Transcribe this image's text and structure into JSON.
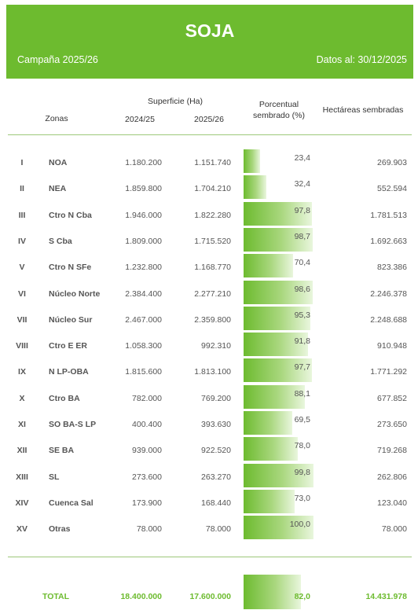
{
  "header": {
    "title": "SOJA",
    "campaign": "Campaña 2025/26",
    "date": "Datos al: 30/12/2025",
    "color": "#6dbb2f"
  },
  "columns": {
    "zonas": "Zonas",
    "superficie": "Superficie (Ha)",
    "year1": "2024/25",
    "year2": "2025/26",
    "porcentual_1": "Porcentual",
    "porcentual_2": "sembrado (%)",
    "hectareas": "Hectáreas sembradas"
  },
  "rows": [
    {
      "roman": "I",
      "zona": "NOA",
      "sup1": "1.180.200",
      "sup2": "1.151.740",
      "pct_label": "23,4",
      "pct": 23.4,
      "hect": "269.903"
    },
    {
      "roman": "II",
      "zona": "NEA",
      "sup1": "1.859.800",
      "sup2": "1.704.210",
      "pct_label": "32,4",
      "pct": 32.4,
      "hect": "552.594"
    },
    {
      "roman": "III",
      "zona": "Ctro N Cba",
      "sup1": "1.946.000",
      "sup2": "1.822.280",
      "pct_label": "97,8",
      "pct": 97.8,
      "hect": "1.781.513"
    },
    {
      "roman": "IV",
      "zona": "S Cba",
      "sup1": "1.809.000",
      "sup2": "1.715.520",
      "pct_label": "98,7",
      "pct": 98.7,
      "hect": "1.692.663"
    },
    {
      "roman": "V",
      "zona": "Ctro N SFe",
      "sup1": "1.232.800",
      "sup2": "1.168.770",
      "pct_label": "70,4",
      "pct": 70.4,
      "hect": "823.386"
    },
    {
      "roman": "VI",
      "zona": "Núcleo Norte",
      "sup1": "2.384.400",
      "sup2": "2.277.210",
      "pct_label": "98,6",
      "pct": 98.6,
      "hect": "2.246.378"
    },
    {
      "roman": "VII",
      "zona": "Núcleo Sur",
      "sup1": "2.467.000",
      "sup2": "2.359.800",
      "pct_label": "95,3",
      "pct": 95.3,
      "hect": "2.248.688"
    },
    {
      "roman": "VIII",
      "zona": "Ctro E ER",
      "sup1": "1.058.300",
      "sup2": "992.310",
      "pct_label": "91,8",
      "pct": 91.8,
      "hect": "910.948"
    },
    {
      "roman": "IX",
      "zona": "N LP-OBA",
      "sup1": "1.815.600",
      "sup2": "1.813.100",
      "pct_label": "97,7",
      "pct": 97.7,
      "hect": "1.771.292"
    },
    {
      "roman": "X",
      "zona": "Ctro BA",
      "sup1": "782.000",
      "sup2": "769.200",
      "pct_label": "88,1",
      "pct": 88.1,
      "hect": "677.852"
    },
    {
      "roman": "XI",
      "zona": "SO BA-S LP",
      "sup1": "400.400",
      "sup2": "393.630",
      "pct_label": "69,5",
      "pct": 69.5,
      "hect": "273.650"
    },
    {
      "roman": "XII",
      "zona": "SE BA",
      "sup1": "939.000",
      "sup2": "922.520",
      "pct_label": "78,0",
      "pct": 78.0,
      "hect": "719.268"
    },
    {
      "roman": "XIII",
      "zona": "SL",
      "sup1": "273.600",
      "sup2": "263.270",
      "pct_label": "99,8",
      "pct": 99.8,
      "hect": "262.806"
    },
    {
      "roman": "XIV",
      "zona": "Cuenca Sal",
      "sup1": "173.900",
      "sup2": "168.440",
      "pct_label": "73,0",
      "pct": 73.0,
      "hect": "123.040"
    },
    {
      "roman": "XV",
      "zona": "Otras",
      "sup1": "78.000",
      "sup2": "78.000",
      "pct_label": "100,0",
      "pct": 100.0,
      "hect": "78.000"
    }
  ],
  "total": {
    "label": "TOTAL",
    "sup1": "18.400.000",
    "sup2": "17.600.000",
    "pct_label": "82,0",
    "pct": 82.0,
    "hect": "14.431.978"
  }
}
